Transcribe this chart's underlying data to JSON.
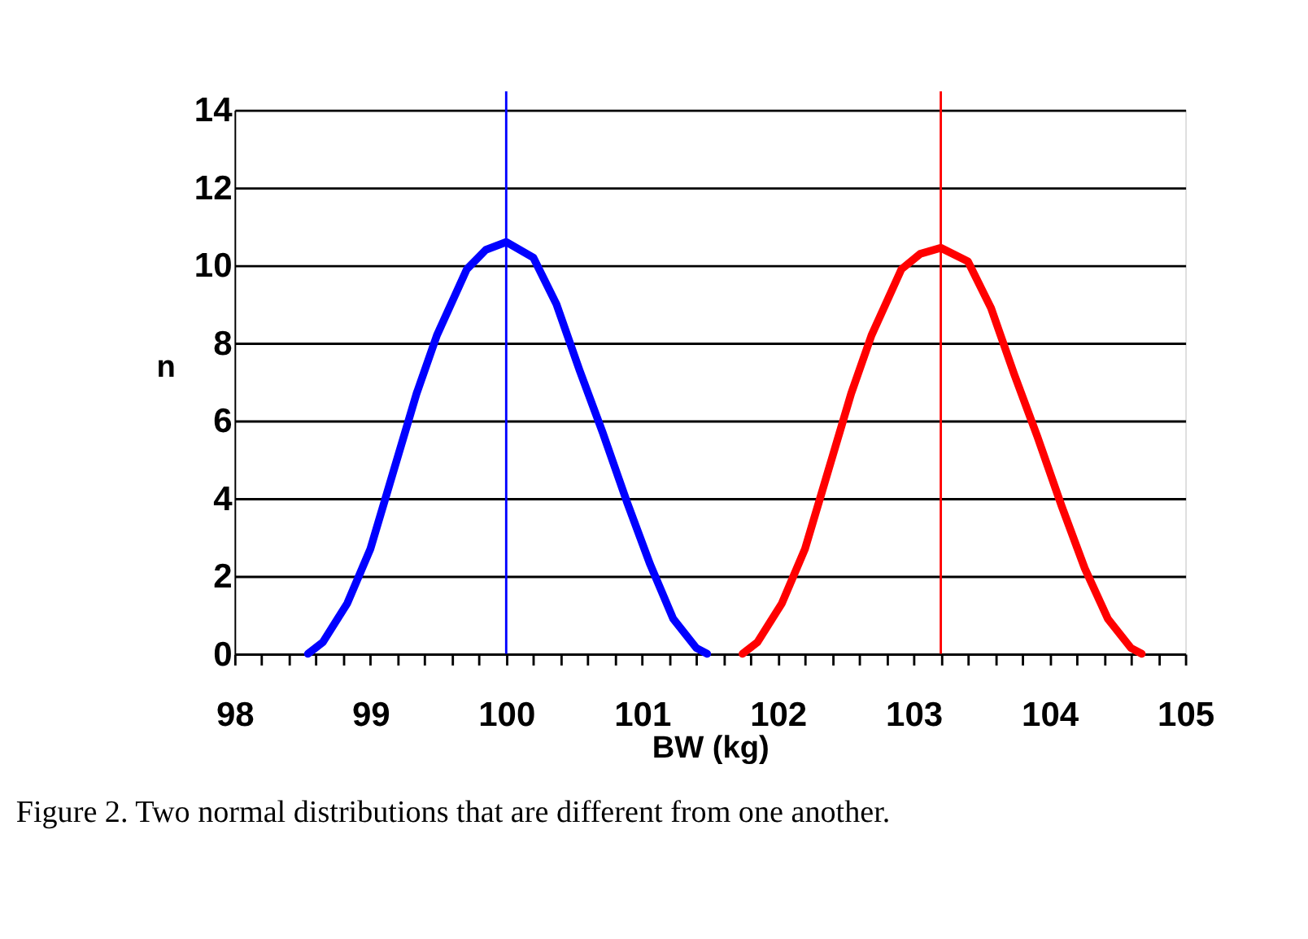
{
  "chart_data": {
    "type": "line",
    "xlabel": "BW (kg)",
    "ylabel": "n",
    "series": [
      {
        "color": "#0000ff",
        "x": [
          98.54,
          98.65,
          98.83,
          99.0,
          99.17,
          99.34,
          99.49,
          99.71,
          99.85,
          100.0,
          100.2,
          100.37,
          100.54,
          100.71,
          100.89,
          101.06,
          101.23,
          101.4,
          101.48
        ],
        "values": [
          0,
          0.3,
          1.3,
          2.7,
          4.7,
          6.7,
          8.2,
          9.9,
          10.4,
          10.6,
          10.2,
          9.0,
          7.3,
          5.7,
          3.9,
          2.3,
          0.9,
          0.15,
          0
        ]
      },
      {
        "color": "#ff0000",
        "x": [
          101.74,
          101.85,
          102.03,
          102.2,
          102.37,
          102.54,
          102.69,
          102.91,
          103.05,
          103.2,
          103.4,
          103.57,
          103.74,
          103.91,
          104.09,
          104.26,
          104.43,
          104.6,
          104.68
        ],
        "values": [
          0,
          0.3,
          1.3,
          2.7,
          4.7,
          6.7,
          8.2,
          9.9,
          10.3,
          10.45,
          10.1,
          8.9,
          7.2,
          5.6,
          3.8,
          2.2,
          0.9,
          0.15,
          0
        ]
      }
    ],
    "ref_lines": [
      {
        "axis": "x",
        "value": 100,
        "color": "#0000ff"
      },
      {
        "axis": "x",
        "value": 103.2,
        "color": "#ff0000"
      }
    ],
    "xlim": [
      98,
      105
    ],
    "xticks": [
      98,
      {
        "value": 98.2,
        "label": null
      },
      {
        "value": 98.4,
        "label": null
      },
      {
        "value": 98.6,
        "label": null
      },
      {
        "value": 98.8,
        "label": null
      },
      99,
      {
        "value": 99.2,
        "label": null
      },
      {
        "value": 99.4,
        "label": null
      },
      {
        "value": 99.6,
        "label": null
      },
      {
        "value": 99.8,
        "label": null
      },
      100,
      {
        "value": 100.2,
        "label": null
      },
      {
        "value": 100.4,
        "label": null
      },
      {
        "value": 100.6,
        "label": null
      },
      {
        "value": 100.8,
        "label": null
      },
      101,
      {
        "value": 101.2,
        "label": null
      },
      {
        "value": 101.4,
        "label": null
      },
      {
        "value": 101.6,
        "label": null
      },
      {
        "value": 101.8,
        "label": null
      },
      102,
      {
        "value": 102.2,
        "label": null
      },
      {
        "value": 102.4,
        "label": null
      },
      {
        "value": 102.6,
        "label": null
      },
      {
        "value": 102.8,
        "label": null
      },
      103,
      {
        "value": 103.2,
        "label": null
      },
      {
        "value": 103.4,
        "label": null
      },
      {
        "value": 103.6,
        "label": null
      },
      {
        "value": 103.8,
        "label": null
      },
      104,
      {
        "value": 104.2,
        "label": null
      },
      {
        "value": 104.4,
        "label": null
      },
      {
        "value": 104.6,
        "label": null
      },
      {
        "value": 104.8,
        "label": null
      },
      105
    ],
    "ylim": [
      0,
      14
    ],
    "yticks": [
      0,
      2,
      4,
      6,
      8,
      10,
      12,
      14
    ],
    "grid": "y",
    "marker": "none",
    "line_style": "solid",
    "annotations": [
      "Figure 2.  Two normal distributions that are different from one another."
    ]
  }
}
